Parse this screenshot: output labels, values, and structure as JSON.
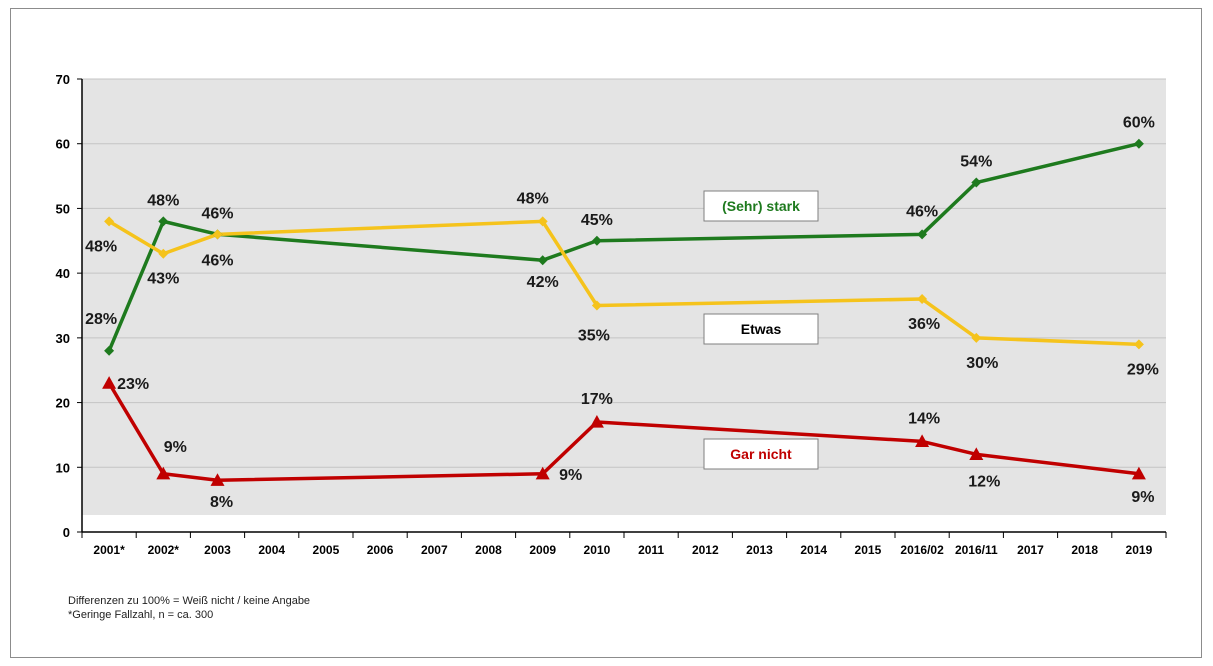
{
  "chart_data": {
    "type": "line",
    "categories": [
      "2001*",
      "2002*",
      "2003",
      "2004",
      "2005",
      "2006",
      "2007",
      "2008",
      "2009",
      "2010",
      "2011",
      "2012",
      "2013",
      "2014",
      "2015",
      "2016/02",
      "2016/11",
      "2017",
      "2018",
      "2019"
    ],
    "ylim": [
      0,
      70
    ],
    "yticks": [
      0,
      10,
      20,
      30,
      40,
      50,
      60,
      70
    ],
    "grid": true,
    "series": [
      {
        "name": "(Sehr) stark",
        "color": "#1e7a1e",
        "marker": "diamond",
        "points": [
          {
            "x": 0,
            "y": 28,
            "label": "28%"
          },
          {
            "x": 1,
            "y": 48,
            "label": "48%"
          },
          {
            "x": 2,
            "y": 46,
            "label": "46%"
          },
          {
            "x": 8,
            "y": 42,
            "label": "42%"
          },
          {
            "x": 9,
            "y": 45,
            "label": "45%"
          },
          {
            "x": 15,
            "y": 46,
            "label": "46%"
          },
          {
            "x": 16,
            "y": 54,
            "label": "54%"
          },
          {
            "x": 19,
            "y": 60,
            "label": "60%"
          }
        ]
      },
      {
        "name": "Etwas",
        "color": "#f5c31c",
        "marker": "diamond",
        "points": [
          {
            "x": 0,
            "y": 48,
            "label": "48%"
          },
          {
            "x": 1,
            "y": 43,
            "label": "43%"
          },
          {
            "x": 2,
            "y": 46,
            "label": "46%"
          },
          {
            "x": 8,
            "y": 48,
            "label": "48%"
          },
          {
            "x": 9,
            "y": 35,
            "label": "35%"
          },
          {
            "x": 15,
            "y": 36,
            "label": "36%"
          },
          {
            "x": 16,
            "y": 30,
            "label": "30%"
          },
          {
            "x": 19,
            "y": 29,
            "label": "29%"
          }
        ]
      },
      {
        "name": "Gar nicht",
        "color": "#c00000",
        "marker": "triangle",
        "points": [
          {
            "x": 0,
            "y": 23,
            "label": "23%"
          },
          {
            "x": 1,
            "y": 9,
            "label": "9%"
          },
          {
            "x": 2,
            "y": 8,
            "label": "8%"
          },
          {
            "x": 8,
            "y": 9,
            "label": "9%"
          },
          {
            "x": 9,
            "y": 17,
            "label": "17%"
          },
          {
            "x": 15,
            "y": 14,
            "label": "14%"
          },
          {
            "x": 16,
            "y": 12,
            "label": "12%"
          },
          {
            "x": 19,
            "y": 9,
            "label": "9%"
          }
        ]
      }
    ],
    "legend": [
      {
        "text": "(Sehr) stark",
        "color": "#1e7a1e"
      },
      {
        "text": "Etwas",
        "color": "#000000"
      },
      {
        "text": "Gar nicht",
        "color": "#c00000"
      }
    ]
  },
  "notes": {
    "line1": "Differenzen zu 100% = Weiß nicht / keine Angabe",
    "line2": "*Geringe Fallzahl, n = ca. 300"
  }
}
